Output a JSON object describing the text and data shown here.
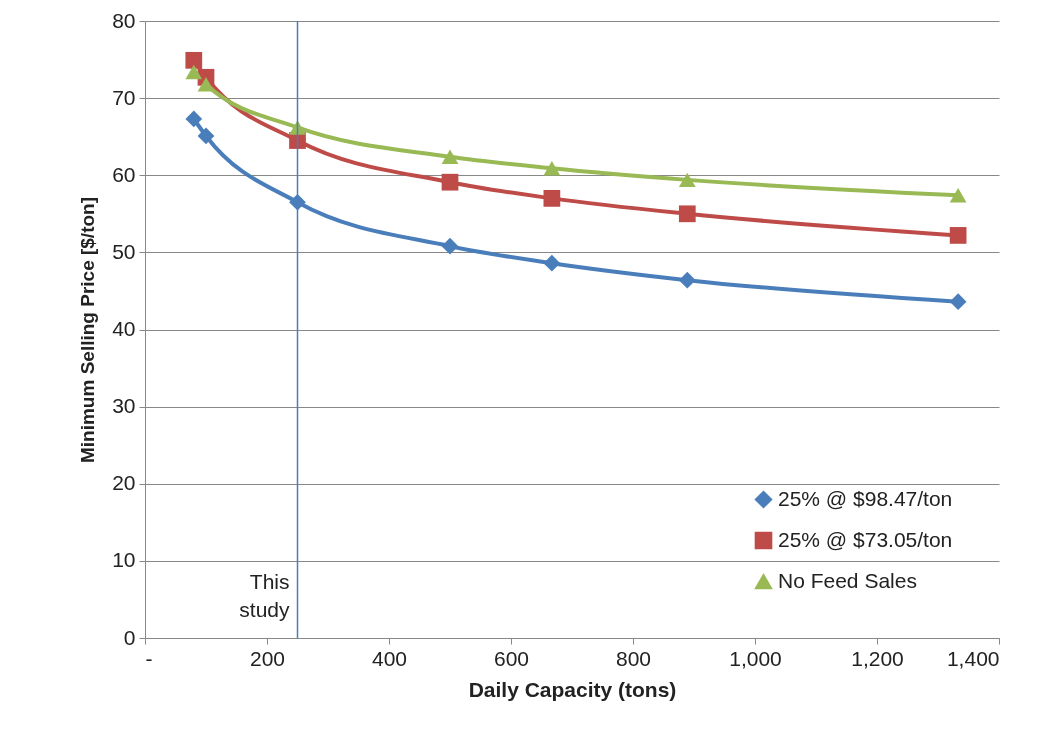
{
  "chart_data": {
    "type": "line",
    "xlabel": "Daily Capacity (tons)",
    "ylabel": "Minimum Selling Price [$/ton]",
    "xlim": [
      0,
      1400
    ],
    "xticks": [
      {
        "value": 0,
        "label": "-"
      },
      200,
      400,
      600,
      800,
      {
        "value": 1000,
        "label": "1,000"
      },
      {
        "value": 1200,
        "label": "1,200"
      },
      {
        "value": 1400,
        "label": "1,400"
      }
    ],
    "ylim": [
      0,
      80
    ],
    "yticks": [
      0,
      10,
      20,
      30,
      40,
      50,
      60,
      70,
      80
    ],
    "grid": "y",
    "legend": "bottom right",
    "line_style": "solid",
    "x": [
      80,
      100,
      250,
      500,
      667,
      889,
      1333
    ],
    "series": [
      {
        "name": "25% @ $98.47/ton",
        "color": "#4a7ebb",
        "marker": "diamond",
        "values": [
          67.3,
          65.1,
          56.5,
          50.8,
          48.6,
          46.4,
          43.6
        ]
      },
      {
        "name": "25% @ $73.05/ton",
        "color": "#be4b48",
        "marker": "square",
        "values": [
          74.9,
          72.7,
          64.5,
          59.1,
          57.0,
          55.0,
          52.2
        ]
      },
      {
        "name": "No Feed Sales",
        "color": "#98b954",
        "marker": "triangle",
        "values": [
          73.4,
          71.8,
          66.2,
          62.4,
          60.9,
          59.4,
          57.4
        ]
      }
    ],
    "ref_lines": [
      {
        "axis": "x",
        "value": 250,
        "label": "This study",
        "color": "#4a7ebb"
      }
    ]
  }
}
